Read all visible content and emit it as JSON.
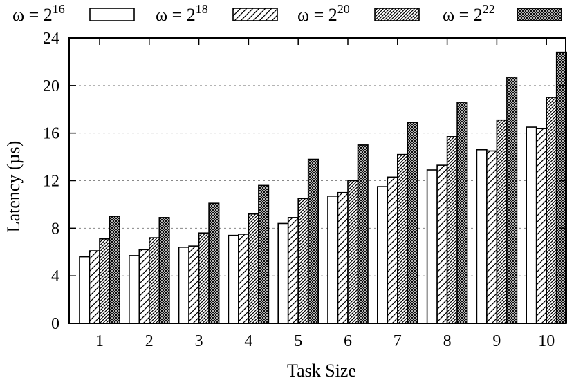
{
  "chart_data": {
    "type": "bar",
    "title": "",
    "xlabel": "Task Size",
    "ylabel": "Latency (µs)",
    "categories": [
      "1",
      "2",
      "3",
      "4",
      "5",
      "6",
      "7",
      "8",
      "9",
      "10"
    ],
    "ylim": [
      0,
      24
    ],
    "yticks": [
      0,
      4,
      8,
      12,
      16,
      20,
      24
    ],
    "grid": "horizontal-dashed",
    "legend_position": "top",
    "series": [
      {
        "name": "ω = 2^16",
        "name_base": "ω = 2",
        "name_exp": "16",
        "pattern": "solid-white",
        "values": [
          5.6,
          5.7,
          6.4,
          7.4,
          8.4,
          10.7,
          11.5,
          12.9,
          14.6,
          16.5
        ]
      },
      {
        "name": "ω = 2^18",
        "name_base": "ω = 2",
        "name_exp": "18",
        "pattern": "sparse-diagonal",
        "values": [
          6.1,
          6.2,
          6.5,
          7.5,
          8.9,
          11.0,
          12.3,
          13.3,
          14.5,
          16.4
        ]
      },
      {
        "name": "ω = 2^20",
        "name_base": "ω = 2",
        "name_exp": "20",
        "pattern": "dense-diagonal",
        "values": [
          7.1,
          7.2,
          7.6,
          9.2,
          10.5,
          12.0,
          14.2,
          15.7,
          17.1,
          19.0
        ]
      },
      {
        "name": "ω = 2^22",
        "name_base": "ω = 2",
        "name_exp": "22",
        "pattern": "crosshatch",
        "values": [
          9.0,
          8.9,
          10.1,
          11.6,
          13.8,
          15.0,
          16.9,
          18.6,
          20.7,
          22.8
        ]
      }
    ]
  }
}
